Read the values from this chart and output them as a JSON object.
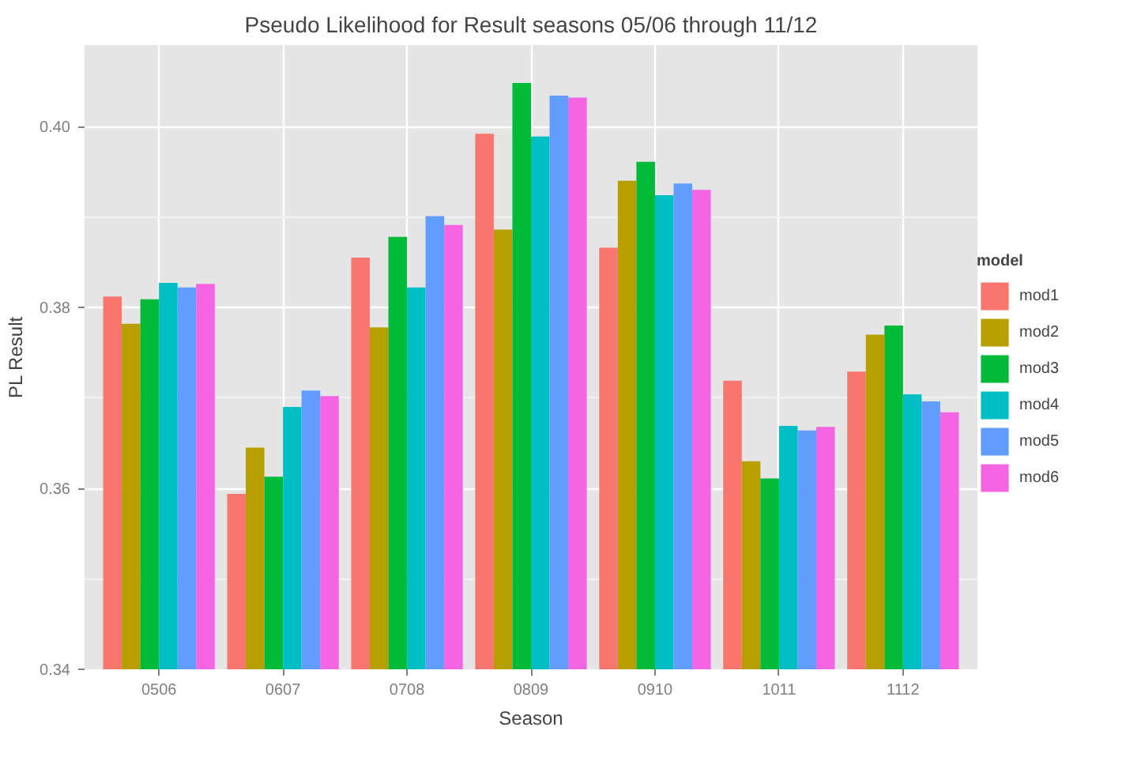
{
  "chart_data": {
    "type": "bar",
    "title": "Pseudo Likelihood for Result seasons 05/06 through 11/12",
    "xlabel": "Season",
    "ylabel": "PL Result",
    "legend_title": "model",
    "categories": [
      "0506",
      "0607",
      "0708",
      "0809",
      "0910",
      "1011",
      "1112"
    ],
    "series": [
      {
        "name": "mod1",
        "color": "#f8766d",
        "values": [
          0.3812,
          0.3594,
          0.3855,
          0.3992,
          0.3866,
          0.3719,
          0.3729
        ]
      },
      {
        "name": "mod2",
        "color": "#b79f00",
        "values": [
          0.3782,
          0.3645,
          0.3778,
          0.3886,
          0.394,
          0.363,
          0.377
        ]
      },
      {
        "name": "mod3",
        "color": "#00ba38",
        "values": [
          0.3809,
          0.3613,
          0.3878,
          0.4048,
          0.3961,
          0.3611,
          0.378
        ]
      },
      {
        "name": "mod4",
        "color": "#00bfc4",
        "values": [
          0.3827,
          0.369,
          0.3822,
          0.3989,
          0.3924,
          0.3669,
          0.3704
        ]
      },
      {
        "name": "mod5",
        "color": "#619cff",
        "values": [
          0.3822,
          0.3708,
          0.3901,
          0.4034,
          0.3937,
          0.3664,
          0.3696
        ]
      },
      {
        "name": "mod6",
        "color": "#f564e3",
        "values": [
          0.3826,
          0.3702,
          0.3891,
          0.4032,
          0.393,
          0.3668,
          0.3684
        ]
      }
    ],
    "ylim": [
      0.34,
      0.409
    ],
    "yticks": [
      0.34,
      0.36,
      0.38,
      {
        "value": 0.4,
        "label": "0.40"
      }
    ],
    "grid": true,
    "legend": "right"
  }
}
